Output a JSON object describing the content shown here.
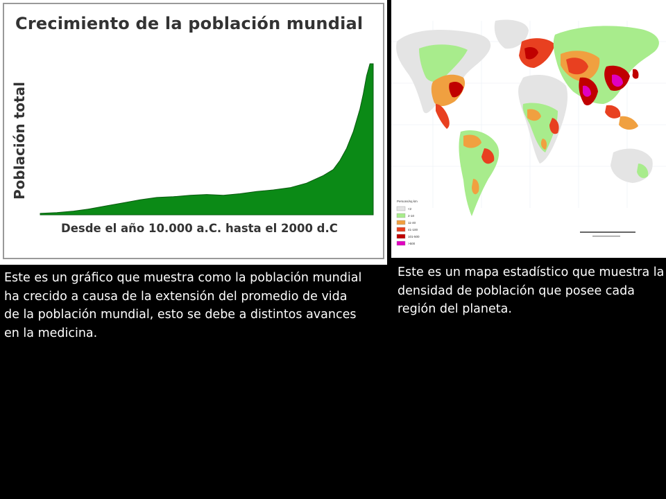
{
  "chart": {
    "title": "Crecimiento de la población mundial",
    "ylabel": "Población total",
    "xlabel": "Desde el año 10.000 a.C. hasta el 2000 d.C"
  },
  "chart_data": {
    "type": "area",
    "title": "Crecimiento de la población mundial",
    "xlabel": "Desde el año 10.000 a.C. hasta el 2000 d.C",
    "ylabel": "Población total",
    "x": [
      0,
      5,
      10,
      15,
      20,
      25,
      30,
      35,
      40,
      45,
      50,
      55,
      60,
      65,
      70,
      75,
      80,
      85,
      88,
      90,
      92,
      94,
      96,
      97,
      98,
      99,
      100
    ],
    "values": [
      1.0,
      1.5,
      2.5,
      4.0,
      6.0,
      8.0,
      10.0,
      11.5,
      12.0,
      13.0,
      13.5,
      13.0,
      14.0,
      15.5,
      16.5,
      18.0,
      21.0,
      26.0,
      30.0,
      36.0,
      44.0,
      55.0,
      70.0,
      80.0,
      92.0,
      100.0,
      100.0
    ],
    "color": "#0b8a16",
    "grid": false
  },
  "map": {
    "legend_title": "Persons/sq km",
    "legend_items": [
      {
        "label": "<2",
        "color": "#e4e4e4"
      },
      {
        "label": "2-10",
        "color": "#a8ec8c"
      },
      {
        "label": "11-40",
        "color": "#f0a040"
      },
      {
        "label": "41-100",
        "color": "#e84020"
      },
      {
        "label": "101-500",
        "color": "#c00000"
      },
      {
        "label": ">500",
        "color": "#e000c0"
      }
    ]
  },
  "captions": {
    "left": "Este es un gráfico que muestra como la población mundial ha crecido  a causa de la extensión del promedio de vida de la población mundial, esto se debe a distintos avances en la medicina.",
    "right": "Este es un  mapa estadístico que muestra la densidad de población que posee cada región del planeta."
  }
}
